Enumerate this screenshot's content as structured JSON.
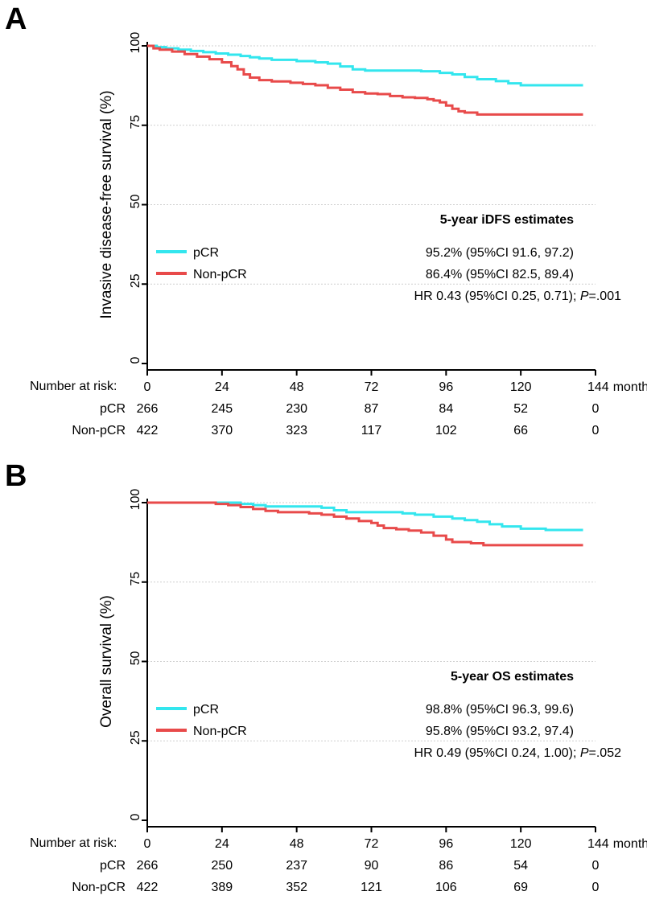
{
  "chart_data": [
    {
      "type": "line",
      "panel_label": "A",
      "ylabel": "Invasive disease-free survival (%)",
      "x_ticks": [
        "0",
        "24",
        "48",
        "72",
        "96",
        "120",
        "144"
      ],
      "x_unit": "months",
      "y_ticks": [
        "0",
        "25",
        "50",
        "75",
        "100"
      ],
      "xlim": [
        0,
        144
      ],
      "ylim": [
        0,
        100
      ],
      "grid": "horizontal dotted",
      "estimates": {
        "title": "5-year iDFS estimates",
        "rows": [
          "95.2% (95%CI 91.6, 97.2)",
          "86.4% (95%CI 82.5, 89.4)"
        ],
        "hr_prefix": "HR 0.43 (95%CI 0.25, 0.71); ",
        "p_label": "P",
        "p_value": "=.001"
      },
      "series": [
        {
          "name": "pCR",
          "color": "#33E6EE",
          "points": [
            [
              0,
              100
            ],
            [
              3,
              99.6
            ],
            [
              6,
              99.2
            ],
            [
              10,
              98.8
            ],
            [
              14,
              98.4
            ],
            [
              18,
              98.0
            ],
            [
              22,
              97.6
            ],
            [
              26,
              97.2
            ],
            [
              30,
              96.8
            ],
            [
              33,
              96.4
            ],
            [
              36,
              96.0
            ],
            [
              40,
              95.6
            ],
            [
              48,
              95.2
            ],
            [
              54,
              94.8
            ],
            [
              58,
              94.4
            ],
            [
              62,
              93.5
            ],
            [
              66,
              92.6
            ],
            [
              70,
              92.2
            ],
            [
              80,
              92.2
            ],
            [
              88,
              92.0
            ],
            [
              94,
              91.5
            ],
            [
              98,
              91.0
            ],
            [
              102,
              90.2
            ],
            [
              106,
              89.5
            ],
            [
              112,
              88.9
            ],
            [
              116,
              88.2
            ],
            [
              120,
              87.6
            ],
            [
              128,
              87.6
            ],
            [
              140,
              87.6
            ]
          ]
        },
        {
          "name": "Non-pCR",
          "color": "#E84A4A",
          "points": [
            [
              0,
              100
            ],
            [
              2,
              99.2
            ],
            [
              4,
              98.8
            ],
            [
              8,
              98.2
            ],
            [
              12,
              97.4
            ],
            [
              16,
              96.6
            ],
            [
              20,
              95.8
            ],
            [
              24,
              94.8
            ],
            [
              27,
              93.6
            ],
            [
              29,
              92.6
            ],
            [
              31,
              91.0
            ],
            [
              33,
              90.0
            ],
            [
              36,
              89.2
            ],
            [
              40,
              88.8
            ],
            [
              46,
              88.4
            ],
            [
              50,
              88.0
            ],
            [
              54,
              87.6
            ],
            [
              58,
              86.8
            ],
            [
              62,
              86.2
            ],
            [
              66,
              85.4
            ],
            [
              70,
              85.0
            ],
            [
              74,
              84.8
            ],
            [
              78,
              84.2
            ],
            [
              82,
              83.8
            ],
            [
              86,
              83.6
            ],
            [
              90,
              83.2
            ],
            [
              92,
              82.8
            ],
            [
              94,
              82.2
            ],
            [
              96,
              81.2
            ],
            [
              98,
              80.2
            ],
            [
              100,
              79.4
            ],
            [
              102,
              79.0
            ],
            [
              106,
              78.4
            ],
            [
              120,
              78.4
            ],
            [
              140,
              78.4
            ]
          ]
        }
      ],
      "risk_table": {
        "title": "Number at risk:",
        "rows": [
          {
            "label": "pCR",
            "values": [
              "266",
              "245",
              "230",
              "87",
              "84",
              "52",
              "0"
            ]
          },
          {
            "label": "Non-pCR",
            "values": [
              "422",
              "370",
              "323",
              "117",
              "102",
              "66",
              "0"
            ]
          }
        ]
      }
    },
    {
      "type": "line",
      "panel_label": "B",
      "ylabel": "Overall survival (%)",
      "x_ticks": [
        "0",
        "24",
        "48",
        "72",
        "96",
        "120",
        "144"
      ],
      "x_unit": "months",
      "y_ticks": [
        "0",
        "25",
        "50",
        "75",
        "100"
      ],
      "xlim": [
        0,
        144
      ],
      "ylim": [
        0,
        100
      ],
      "grid": "horizontal dotted",
      "estimates": {
        "title": "5-year OS estimates",
        "rows": [
          "98.8% (95%CI 96.3, 99.6)",
          "95.8% (95%CI 93.2, 97.4)"
        ],
        "hr_prefix": "HR 0.49 (95%CI 0.24, 1.00); ",
        "p_label": "P",
        "p_value": "=.052"
      },
      "series": [
        {
          "name": "pCR",
          "color": "#33E6EE",
          "points": [
            [
              0,
              100
            ],
            [
              24,
              100
            ],
            [
              30,
              99.6
            ],
            [
              34,
              99.2
            ],
            [
              38,
              98.8
            ],
            [
              48,
              98.8
            ],
            [
              56,
              98.4
            ],
            [
              60,
              97.6
            ],
            [
              64,
              97.0
            ],
            [
              70,
              97.0
            ],
            [
              82,
              96.6
            ],
            [
              86,
              96.2
            ],
            [
              92,
              95.6
            ],
            [
              96,
              95.6
            ],
            [
              98,
              95.0
            ],
            [
              102,
              94.5
            ],
            [
              106,
              94.0
            ],
            [
              110,
              93.2
            ],
            [
              114,
              92.5
            ],
            [
              120,
              91.8
            ],
            [
              128,
              91.4
            ],
            [
              140,
              91.4
            ]
          ]
        },
        {
          "name": "Non-pCR",
          "color": "#E84A4A",
          "points": [
            [
              0,
              100
            ],
            [
              20,
              100
            ],
            [
              22,
              99.6
            ],
            [
              26,
              99.2
            ],
            [
              30,
              98.6
            ],
            [
              34,
              98.0
            ],
            [
              38,
              97.4
            ],
            [
              42,
              97.0
            ],
            [
              48,
              97.0
            ],
            [
              52,
              96.6
            ],
            [
              56,
              96.2
            ],
            [
              60,
              95.6
            ],
            [
              64,
              95.0
            ],
            [
              68,
              94.2
            ],
            [
              72,
              93.6
            ],
            [
              74,
              92.8
            ],
            [
              76,
              92.0
            ],
            [
              80,
              91.6
            ],
            [
              84,
              91.2
            ],
            [
              88,
              90.6
            ],
            [
              92,
              89.6
            ],
            [
              96,
              88.4
            ],
            [
              98,
              87.6
            ],
            [
              104,
              87.2
            ],
            [
              108,
              86.6
            ],
            [
              120,
              86.6
            ],
            [
              140,
              86.6
            ]
          ]
        }
      ],
      "risk_table": {
        "title": "Number at risk:",
        "rows": [
          {
            "label": "pCR",
            "values": [
              "266",
              "250",
              "237",
              "90",
              "86",
              "54",
              "0"
            ]
          },
          {
            "label": "Non-pCR",
            "values": [
              "422",
              "389",
              "352",
              "121",
              "106",
              "69",
              "0"
            ]
          }
        ]
      }
    }
  ]
}
